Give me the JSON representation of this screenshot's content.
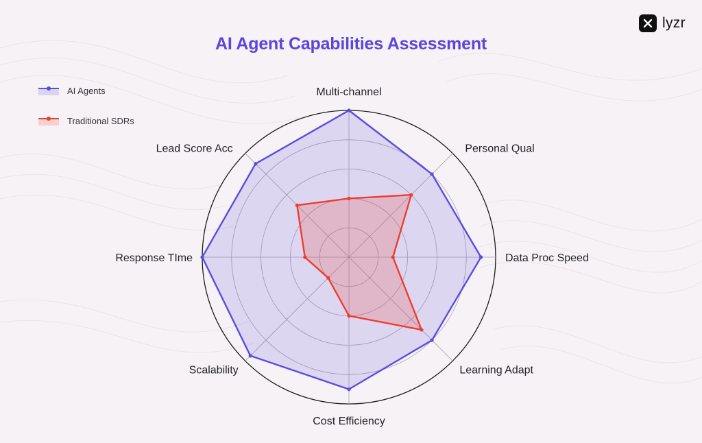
{
  "brand": {
    "name": "lyzr"
  },
  "colors": {
    "title": "#5b45dc",
    "ai_agents": "#5b4be0",
    "traditional_sdrs": "#ee3d2c",
    "background": "#f7f2f5"
  },
  "chart_data": {
    "type": "radar",
    "title": "AI Agent Capabilities Assessment",
    "axes": [
      "Multi-channel",
      "Personal Qual",
      "Data Proc Speed",
      "Learning Adapt",
      "Cost Efficiency",
      "Scalability",
      "Response TIme",
      "Lead Score Acc"
    ],
    "range": [
      0,
      100
    ],
    "rings": 5,
    "grid": true,
    "legend_position": "top-left",
    "series": [
      {
        "name": "AI Agents",
        "color": "#5b4be0",
        "values": [
          100,
          80,
          90,
          80,
          90,
          95,
          100,
          90
        ]
      },
      {
        "name": "Traditional SDRs",
        "color": "#ee3d2c",
        "values": [
          40,
          60,
          30,
          70,
          40,
          20,
          30,
          50
        ]
      }
    ]
  }
}
